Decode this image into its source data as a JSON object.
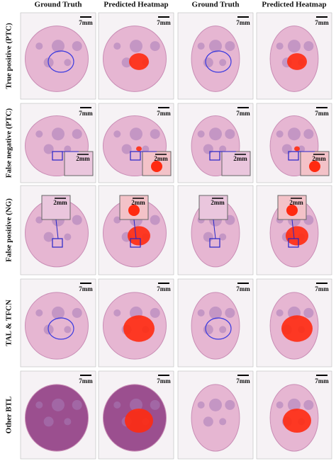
{
  "columns": [
    "Ground Truth",
    "Predicted Heatmap",
    "Ground Truth",
    "Predicted Heatmap"
  ],
  "rows": [
    {
      "label": "True positive (PTC)",
      "panels": [
        {
          "scale": "7mm"
        },
        {
          "scale": "7mm"
        },
        {
          "scale": "7mm"
        },
        {
          "scale": "7mm"
        }
      ]
    },
    {
      "label": "False negative (PTC)",
      "panels": [
        {
          "scale": "7mm",
          "inset": "2mm"
        },
        {
          "scale": "7mm",
          "inset": "2mm"
        },
        {
          "scale": "7mm",
          "inset": "2mm"
        },
        {
          "scale": "7mm",
          "inset": "2mm"
        }
      ]
    },
    {
      "label": "False positive (NG)",
      "panels": [
        {
          "inset": "2mm"
        },
        {
          "inset": "2mm"
        },
        {
          "inset": "2mm"
        },
        {
          "inset": "2mm"
        }
      ]
    },
    {
      "label": "TAL & TFCN",
      "panels": [
        {
          "scale": "7mm"
        },
        {
          "scale": "7mm"
        },
        {
          "scale": "7mm"
        },
        {
          "scale": "7mm"
        }
      ]
    },
    {
      "label": "Other BTL",
      "panels": [
        {
          "scale": "7mm"
        },
        {
          "scale": "7mm"
        },
        {
          "scale": "7mm"
        },
        {
          "scale": "7mm"
        }
      ]
    }
  ]
}
